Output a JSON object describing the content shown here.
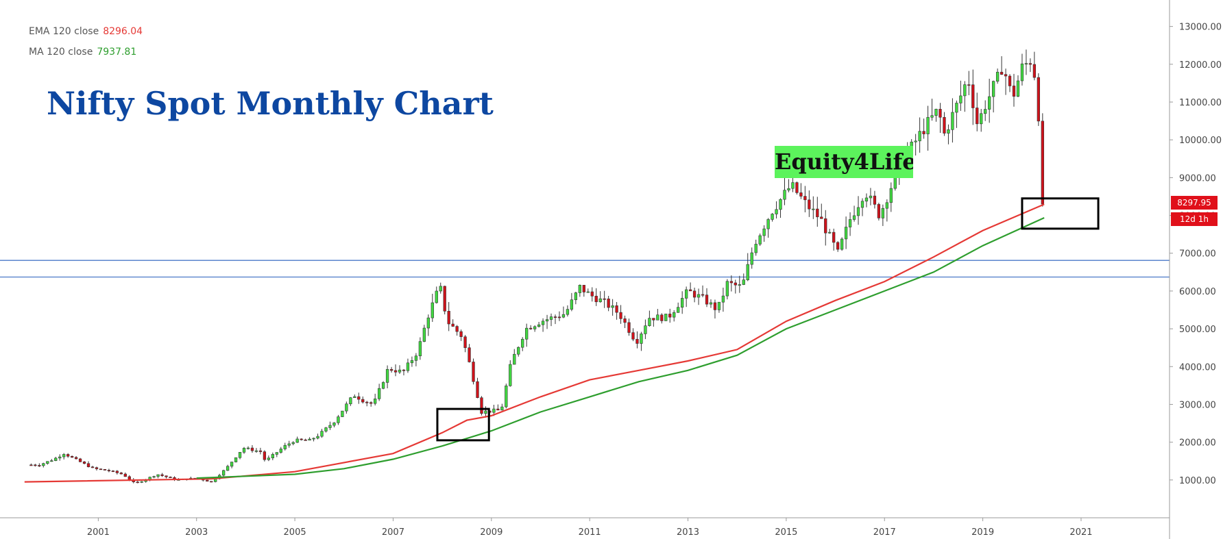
{
  "header": {
    "title": "Nifty Spot Monthly Chart",
    "watermark": "Equity4Life"
  },
  "indicators": {
    "ema": {
      "label": "EMA 120 close",
      "value": "8296.04",
      "color": "#e53935"
    },
    "ma": {
      "label": "MA 120 close",
      "value": "7937.81",
      "color": "#2e9e2e"
    }
  },
  "price_tag": {
    "price": "8297.95",
    "countdown": "12d 1h",
    "color": "#e0101a"
  },
  "colors": {
    "up": "#41d941",
    "down": "#d0121b",
    "wick": "#333333",
    "hline": "#4a78c8",
    "box": "#000000"
  },
  "chart_data": {
    "type": "candlestick",
    "title": "Nifty Spot Monthly Chart",
    "x_range": [
      1999.0,
      2022.8
    ],
    "ylim": [
      0,
      13700
    ],
    "x_tick_labels": [
      "2001",
      "2003",
      "2005",
      "2007",
      "2009",
      "2011",
      "2013",
      "2015",
      "2017",
      "2019",
      "2021"
    ],
    "y_tick_labels": [
      "1000.00",
      "2000.00",
      "3000.00",
      "4000.00",
      "5000.00",
      "6000.00",
      "7000.00",
      "8000.00",
      "9000.00",
      "10000.00",
      "11000.00",
      "12000.00",
      "13000.00"
    ],
    "close_anchors": [
      [
        1999.8,
        1400
      ],
      [
        2000.1,
        1550
      ],
      [
        2000.3,
        1700
      ],
      [
        2000.6,
        1500
      ],
      [
        2000.9,
        1300
      ],
      [
        2001.2,
        1250
      ],
      [
        2001.5,
        1150
      ],
      [
        2001.75,
        900
      ],
      [
        2002.2,
        1150
      ],
      [
        2002.6,
        1000
      ],
      [
        2003.0,
        1050
      ],
      [
        2003.3,
        950
      ],
      [
        2003.6,
        1300
      ],
      [
        2003.95,
        1850
      ],
      [
        2004.3,
        1750
      ],
      [
        2004.4,
        1500
      ],
      [
        2004.8,
        1900
      ],
      [
        2005.0,
        2050
      ],
      [
        2005.3,
        2050
      ],
      [
        2005.5,
        2200
      ],
      [
        2005.8,
        2550
      ],
      [
        2006.2,
        3250
      ],
      [
        2006.4,
        3100
      ],
      [
        2006.6,
        3000
      ],
      [
        2006.9,
        3950
      ],
      [
        2007.2,
        3850
      ],
      [
        2007.5,
        4400
      ],
      [
        2007.7,
        5300
      ],
      [
        2007.95,
        6150
      ],
      [
        2008.1,
        5200
      ],
      [
        2008.4,
        4800
      ],
      [
        2008.55,
        4100
      ],
      [
        2008.8,
        2800
      ],
      [
        2009.2,
        2850
      ],
      [
        2009.4,
        4100
      ],
      [
        2009.7,
        5000
      ],
      [
        2010.0,
        5200
      ],
      [
        2010.5,
        5400
      ],
      [
        2010.8,
        6100
      ],
      [
        2011.0,
        5900
      ],
      [
        2011.3,
        5700
      ],
      [
        2011.6,
        5400
      ],
      [
        2011.95,
        4650
      ],
      [
        2012.2,
        5300
      ],
      [
        2012.6,
        5300
      ],
      [
        2013.0,
        6000
      ],
      [
        2013.3,
        5800
      ],
      [
        2013.6,
        5500
      ],
      [
        2013.8,
        6200
      ],
      [
        2014.1,
        6100
      ],
      [
        2014.35,
        7250
      ],
      [
        2014.7,
        8100
      ],
      [
        2015.1,
        8800
      ],
      [
        2015.4,
        8300
      ],
      [
        2015.7,
        7900
      ],
      [
        2016.05,
        7000
      ],
      [
        2016.3,
        7900
      ],
      [
        2016.6,
        8650
      ],
      [
        2016.9,
        8000
      ],
      [
        2017.3,
        9300
      ],
      [
        2017.8,
        10300
      ],
      [
        2018.1,
        10800
      ],
      [
        2018.2,
        10100
      ],
      [
        2018.5,
        11000
      ],
      [
        2018.7,
        11650
      ],
      [
        2018.9,
        10350
      ],
      [
        2019.0,
        10800
      ],
      [
        2019.3,
        11600
      ],
      [
        2019.4,
        12000
      ],
      [
        2019.6,
        11100
      ],
      [
        2019.8,
        11900
      ],
      [
        2020.0,
        12150
      ],
      [
        2020.1,
        11350
      ],
      [
        2020.25,
        8300
      ]
    ],
    "series": [
      {
        "name": "EMA 120 close",
        "points": [
          [
            1999.5,
            950
          ],
          [
            2003.3,
            1030
          ],
          [
            2005.0,
            1220
          ],
          [
            2007.0,
            1700
          ],
          [
            2008.0,
            2250
          ],
          [
            2008.5,
            2580
          ],
          [
            2009.0,
            2700
          ],
          [
            2010.0,
            3200
          ],
          [
            2011.0,
            3650
          ],
          [
            2012.0,
            3900
          ],
          [
            2013.0,
            4150
          ],
          [
            2014.0,
            4450
          ],
          [
            2015.0,
            5200
          ],
          [
            2016.0,
            5750
          ],
          [
            2017.0,
            6250
          ],
          [
            2018.0,
            6900
          ],
          [
            2019.0,
            7600
          ],
          [
            2020.25,
            8296
          ]
        ]
      },
      {
        "name": "MA 120 close",
        "points": [
          [
            2003.0,
            1050
          ],
          [
            2004.0,
            1100
          ],
          [
            2005.0,
            1150
          ],
          [
            2006.0,
            1300
          ],
          [
            2007.0,
            1550
          ],
          [
            2008.0,
            1900
          ],
          [
            2009.0,
            2300
          ],
          [
            2010.0,
            2800
          ],
          [
            2011.0,
            3200
          ],
          [
            2012.0,
            3600
          ],
          [
            2013.0,
            3900
          ],
          [
            2014.0,
            4300
          ],
          [
            2015.0,
            5000
          ],
          [
            2016.0,
            5500
          ],
          [
            2017.0,
            6000
          ],
          [
            2018.0,
            6500
          ],
          [
            2019.0,
            7200
          ],
          [
            2020.25,
            7938
          ]
        ]
      }
    ],
    "horizontal_lines": [
      6810,
      6370
    ],
    "highlight_boxes": [
      {
        "x": [
          2007.9,
          2008.95
        ],
        "y": [
          2050,
          2880
        ]
      },
      {
        "x": [
          2019.8,
          2021.35
        ],
        "y": [
          7650,
          8450
        ]
      }
    ]
  }
}
